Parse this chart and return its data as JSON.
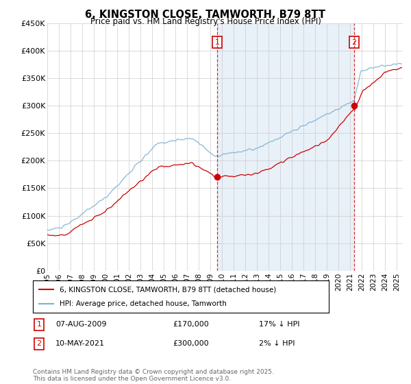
{
  "title": "6, KINGSTON CLOSE, TAMWORTH, B79 8TT",
  "subtitle": "Price paid vs. HM Land Registry's House Price Index (HPI)",
  "ylabel_values": [
    "£0",
    "£50K",
    "£100K",
    "£150K",
    "£200K",
    "£250K",
    "£300K",
    "£350K",
    "£400K",
    "£450K"
  ],
  "ylim": [
    0,
    450000
  ],
  "yticks": [
    0,
    50000,
    100000,
    150000,
    200000,
    250000,
    300000,
    350000,
    400000,
    450000
  ],
  "sale1_date": "07-AUG-2009",
  "sale1_price": 170000,
  "sale1_hpi": "17% ↓ HPI",
  "sale2_date": "10-MAY-2021",
  "sale2_price": 300000,
  "sale2_hpi": "2% ↓ HPI",
  "legend_label1": "6, KINGSTON CLOSE, TAMWORTH, B79 8TT (detached house)",
  "legend_label2": "HPI: Average price, detached house, Tamworth",
  "footer": "Contains HM Land Registry data © Crown copyright and database right 2025.\nThis data is licensed under the Open Government Licence v3.0.",
  "line1_color": "#cc0000",
  "line2_color": "#7ab0d4",
  "vline_color": "#cc0000",
  "shade_color": "#e8f0f8",
  "grid_color": "#cccccc",
  "bg_color": "#f5f5f5"
}
